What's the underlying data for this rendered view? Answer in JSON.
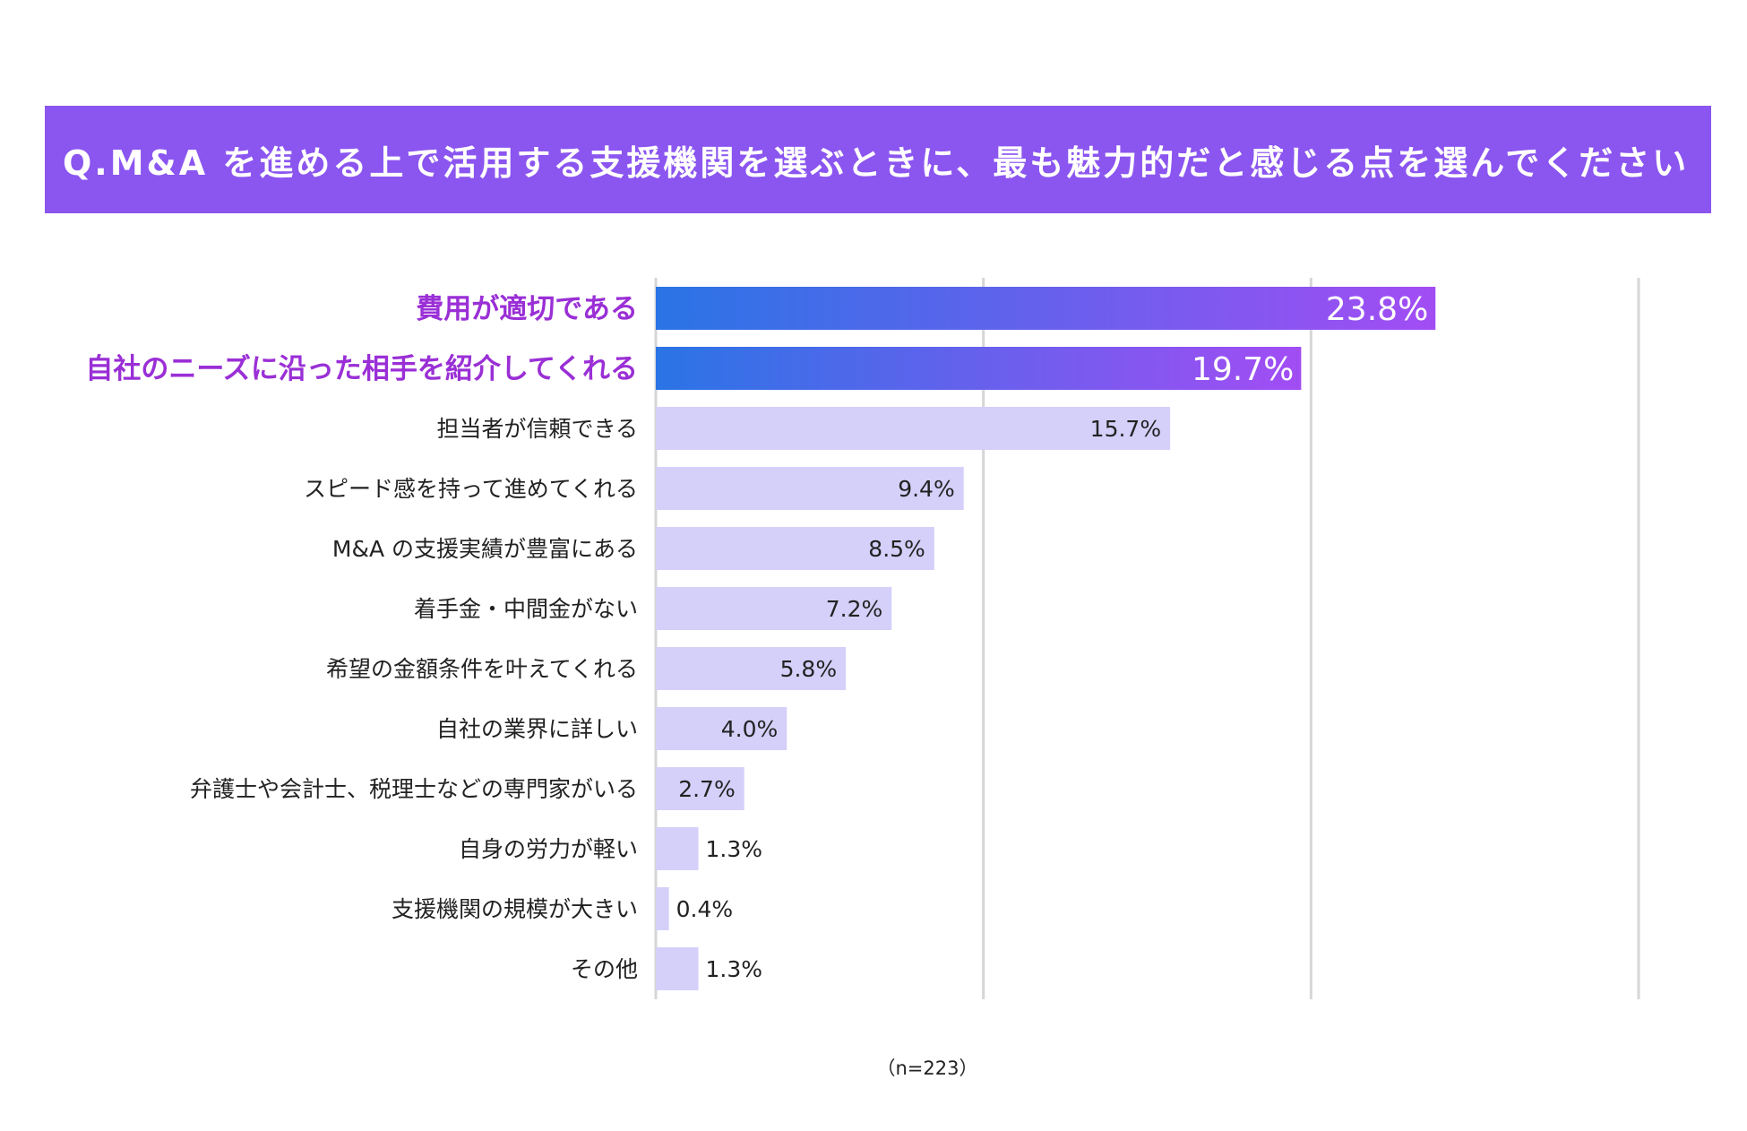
{
  "title": "Q.M&A を進める上で活用する支援機関を選ぶときに、最も魅力的だと感じる点を選んでください",
  "footnote": "（n=223）",
  "colors": {
    "title_bg": "#8b55f0",
    "bar_normal": "#d4d0fa",
    "bar_gradient_start": "#2a74e6",
    "bar_gradient_end": "#a24df4",
    "highlight_label": "#9a2fd6",
    "grid": "#d6d6d6"
  },
  "chart_data": {
    "type": "bar",
    "orientation": "horizontal",
    "xlim": [
      0,
      30
    ],
    "grid": true,
    "gridlines_at": [
      0,
      10,
      20,
      30
    ],
    "value_suffix": "%",
    "categories": [
      "費用が適切である",
      "自社のニーズに沿った相手を紹介してくれる",
      "担当者が信頼できる",
      "スピード感を持って進めてくれる",
      "M&A の支援実績が豊富にある",
      "着手金・中間金がない",
      "希望の金額条件を叶えてくれる",
      "自社の業界に詳しい",
      "弁護士や会計士、税理士などの専門家がいる",
      "自身の労力が軽い",
      "支援機関の規模が大きい",
      "その他"
    ],
    "values": [
      23.8,
      19.7,
      15.7,
      9.4,
      8.5,
      7.2,
      5.8,
      4.0,
      2.7,
      1.3,
      0.4,
      1.3
    ],
    "value_labels": [
      "23.8%",
      "19.7%",
      "15.7%",
      "9.4%",
      "8.5%",
      "7.2%",
      "5.8%",
      "4.0%",
      "2.7%",
      "1.3%",
      "0.4%",
      "1.3%"
    ],
    "highlighted": [
      0,
      1
    ]
  }
}
